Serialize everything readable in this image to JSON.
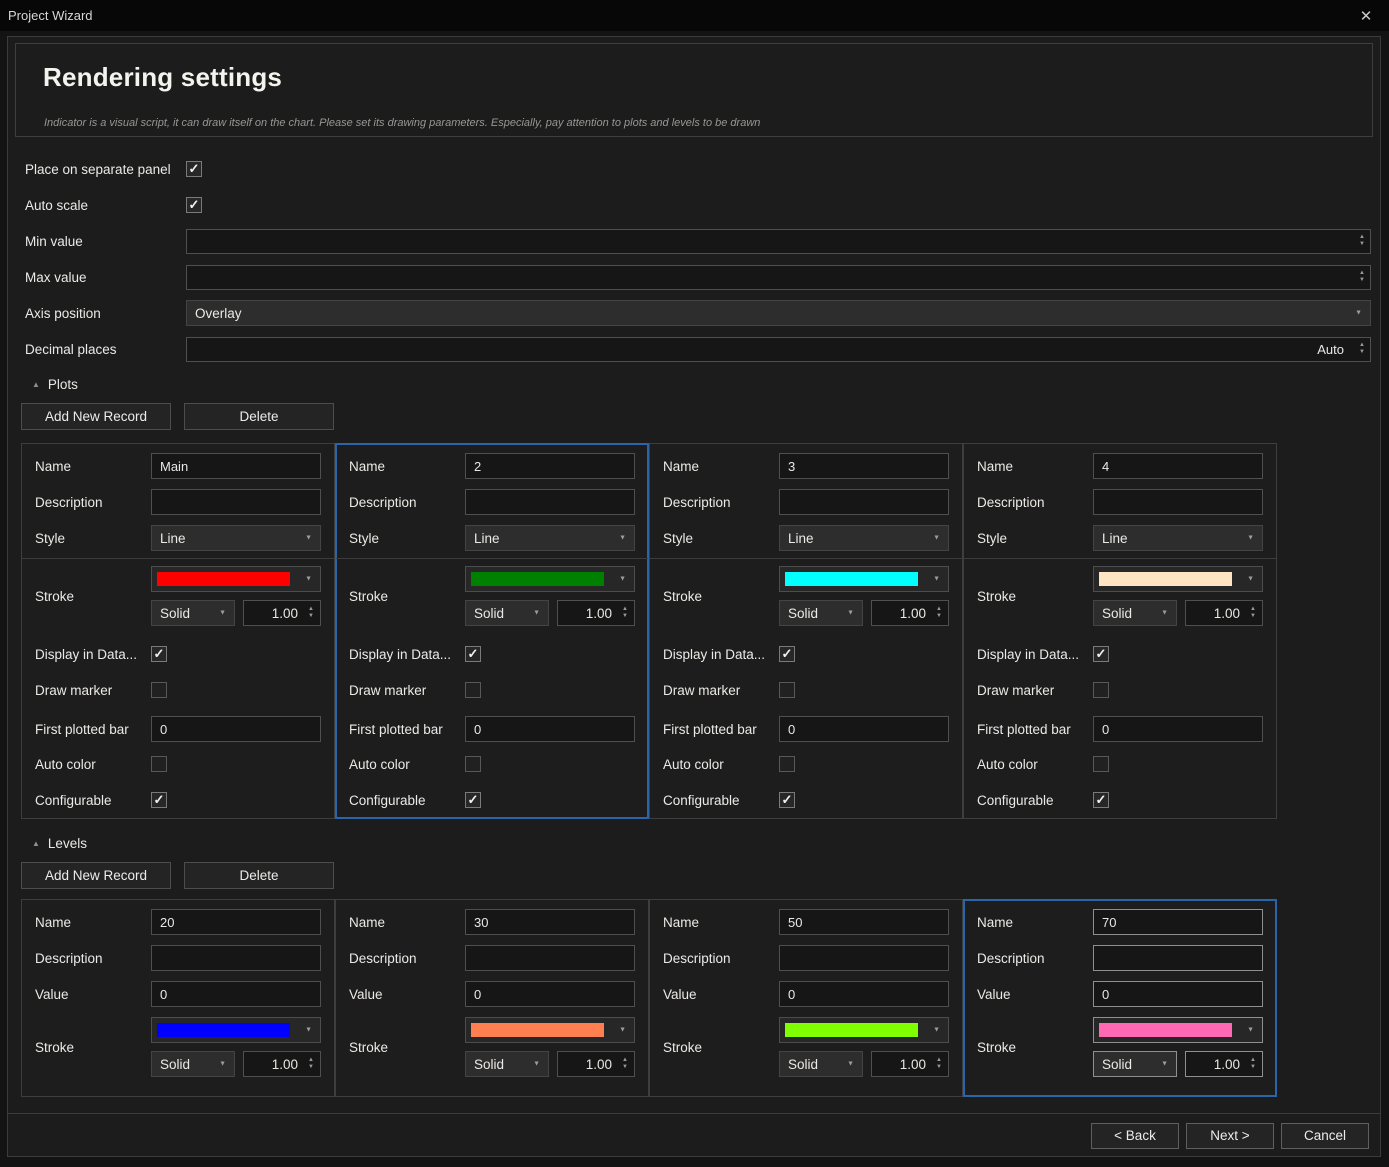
{
  "window": {
    "title": "Project Wizard",
    "close_icon": "✕"
  },
  "header": {
    "title": "Rendering settings",
    "subtitle": "Indicator is a visual script, it can draw itself on the chart. Please set its drawing parameters. Especially, pay attention to plots and levels to be drawn"
  },
  "general": {
    "place_on_separate_panel": {
      "label": "Place on separate panel",
      "checked": true
    },
    "auto_scale": {
      "label": "Auto scale",
      "checked": true
    },
    "min_value": {
      "label": "Min value",
      "value": ""
    },
    "max_value": {
      "label": "Max value",
      "value": ""
    },
    "axis_position": {
      "label": "Axis position",
      "value": "Overlay"
    },
    "decimal_places": {
      "label": "Decimal places",
      "value": "Auto"
    }
  },
  "plots": {
    "section_label": "Plots",
    "add_button": "Add New Record",
    "delete_button": "Delete",
    "field_labels": {
      "name": "Name",
      "description": "Description",
      "style": "Style",
      "stroke": "Stroke",
      "display_in_data": "Display in Data...",
      "draw_marker": "Draw marker",
      "first_plotted_bar": "First plotted bar",
      "auto_color": "Auto color",
      "configurable": "Configurable"
    },
    "records": [
      {
        "name": "Main",
        "description": "",
        "style": "Line",
        "stroke_color": "#ff0000",
        "stroke_dash": "Solid",
        "stroke_width": "1.00",
        "display_in_data": true,
        "draw_marker": false,
        "first_plotted_bar": "0",
        "auto_color": false,
        "configurable": true,
        "selected": false
      },
      {
        "name": "2",
        "description": "",
        "style": "Line",
        "stroke_color": "#008000",
        "stroke_dash": "Solid",
        "stroke_width": "1.00",
        "display_in_data": true,
        "draw_marker": false,
        "first_plotted_bar": "0",
        "auto_color": false,
        "configurable": true,
        "selected": true
      },
      {
        "name": "3",
        "description": "",
        "style": "Line",
        "stroke_color": "#00ffff",
        "stroke_dash": "Solid",
        "stroke_width": "1.00",
        "display_in_data": true,
        "draw_marker": false,
        "first_plotted_bar": "0",
        "auto_color": false,
        "configurable": true,
        "selected": false
      },
      {
        "name": "4",
        "description": "",
        "style": "Line",
        "stroke_color": "#ffe4c4",
        "stroke_dash": "Solid",
        "stroke_width": "1.00",
        "display_in_data": true,
        "draw_marker": false,
        "first_plotted_bar": "0",
        "auto_color": false,
        "configurable": true,
        "selected": false
      }
    ]
  },
  "levels": {
    "section_label": "Levels",
    "add_button": "Add New Record",
    "delete_button": "Delete",
    "field_labels": {
      "name": "Name",
      "description": "Description",
      "value": "Value",
      "stroke": "Stroke"
    },
    "records": [
      {
        "name": "20",
        "description": "",
        "value": "0",
        "stroke_color": "#0000ff",
        "stroke_dash": "Solid",
        "stroke_width": "1.00",
        "selected": false
      },
      {
        "name": "30",
        "description": "",
        "value": "0",
        "stroke_color": "#ff7f50",
        "stroke_dash": "Solid",
        "stroke_width": "1.00",
        "selected": false
      },
      {
        "name": "50",
        "description": "",
        "value": "0",
        "stroke_color": "#7fff00",
        "stroke_dash": "Solid",
        "stroke_width": "1.00",
        "selected": false
      },
      {
        "name": "70",
        "description": "",
        "value": "0",
        "stroke_color": "#ff69b4",
        "stroke_dash": "Solid",
        "stroke_width": "1.00",
        "selected": true
      }
    ]
  },
  "footer": {
    "back": "< Back",
    "next": "Next >",
    "cancel": "Cancel"
  }
}
